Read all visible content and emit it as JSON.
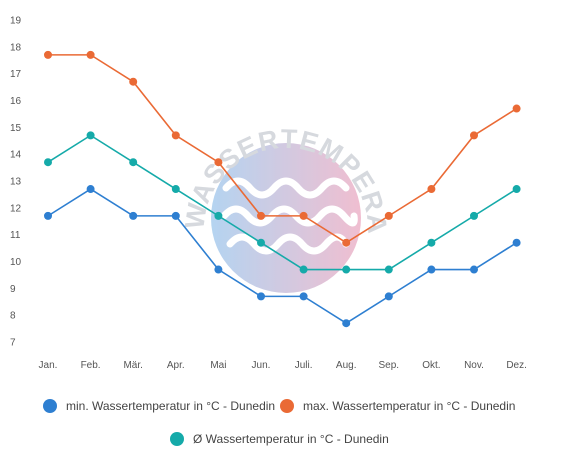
{
  "chart_data": {
    "type": "line",
    "categories": [
      "Jan.",
      "Feb.",
      "Mär.",
      "Apr.",
      "Mai",
      "Jun.",
      "Juli.",
      "Aug.",
      "Sep.",
      "Okt.",
      "Nov.",
      "Dez."
    ],
    "series": [
      {
        "name": "min. Wassertemperatur in °C - Dunedin",
        "color": "#2e7fd1",
        "values": [
          11.7,
          12.7,
          11.7,
          11.7,
          9.7,
          8.7,
          8.7,
          7.7,
          8.7,
          9.7,
          9.7,
          10.7
        ]
      },
      {
        "name": "max. Wassertemperatur in °C - Dunedin",
        "color": "#ea6a35",
        "values": [
          17.7,
          17.7,
          16.7,
          14.7,
          13.7,
          11.7,
          11.7,
          10.7,
          11.7,
          12.7,
          14.7,
          15.7
        ]
      },
      {
        "name": "Ø Wassertemperatur in °C - Dunedin",
        "color": "#15aaa9",
        "values": [
          13.7,
          14.7,
          13.7,
          12.7,
          11.7,
          10.7,
          9.7,
          9.7,
          9.7,
          10.7,
          11.7,
          12.7
        ]
      }
    ],
    "yticks": [
      "7",
      "8",
      "9",
      "10",
      "11",
      "12",
      "13",
      "14",
      "15",
      "16",
      "17",
      "18",
      "19"
    ],
    "ylim": [
      7,
      19
    ],
    "grid": false,
    "legend_position": "bottom",
    "title": "",
    "xlabel": "",
    "ylabel": ""
  },
  "watermark": {
    "text": "WASSERTEMPERATUR.ORG"
  }
}
